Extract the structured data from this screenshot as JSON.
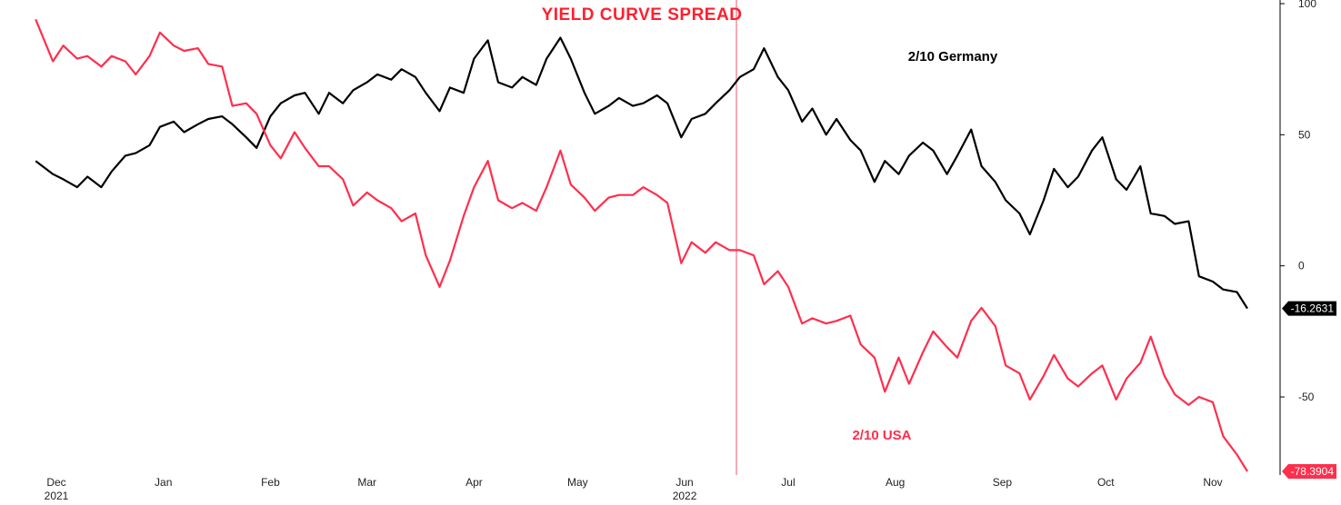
{
  "chart_data": {
    "type": "line",
    "title": "YIELD CURVE SPREAD",
    "xlabel": "",
    "ylabel": "",
    "ylim": [
      -78.3904,
      100
    ],
    "y_ticks": [
      "100",
      "50",
      "0",
      "-50"
    ],
    "x_ticks": [
      {
        "label": "Dec",
        "year": "2021",
        "date": "2021-12-01"
      },
      {
        "label": "Jan",
        "year": "",
        "date": "2022-01-01"
      },
      {
        "label": "Feb",
        "year": "",
        "date": "2022-02-01"
      },
      {
        "label": "Mar",
        "year": "",
        "date": "2022-03-01"
      },
      {
        "label": "Apr",
        "year": "",
        "date": "2022-04-01"
      },
      {
        "label": "May",
        "year": "",
        "date": "2022-05-01"
      },
      {
        "label": "Jun",
        "year": "2022",
        "date": "2022-06-01"
      },
      {
        "label": "Jul",
        "year": "",
        "date": "2022-07-01"
      },
      {
        "label": "Aug",
        "year": "",
        "date": "2022-08-01"
      },
      {
        "label": "Sep",
        "year": "",
        "date": "2022-09-01"
      },
      {
        "label": "Oct",
        "year": "",
        "date": "2022-10-01"
      },
      {
        "label": "Nov",
        "year": "",
        "date": "2022-11-01"
      }
    ],
    "vertical_marker_date": "2022-06-16",
    "grid": false,
    "legend": "none",
    "series": [
      {
        "name": "2/10 Germany",
        "color": "#000000",
        "last_value": "-16.2631",
        "points": [
          [
            "2021-11-25",
            40
          ],
          [
            "2021-11-30",
            35
          ],
          [
            "2021-12-03",
            33
          ],
          [
            "2021-12-07",
            30
          ],
          [
            "2021-12-10",
            34
          ],
          [
            "2021-12-14",
            30
          ],
          [
            "2021-12-17",
            36
          ],
          [
            "2021-12-21",
            42
          ],
          [
            "2021-12-24",
            43
          ],
          [
            "2021-12-28",
            46
          ],
          [
            "2021-12-31",
            53
          ],
          [
            "2022-01-04",
            55
          ],
          [
            "2022-01-07",
            51
          ],
          [
            "2022-01-11",
            54
          ],
          [
            "2022-01-14",
            56
          ],
          [
            "2022-01-18",
            57
          ],
          [
            "2022-01-21",
            54
          ],
          [
            "2022-01-25",
            49
          ],
          [
            "2022-01-28",
            45
          ],
          [
            "2022-02-01",
            57
          ],
          [
            "2022-02-04",
            62
          ],
          [
            "2022-02-08",
            65
          ],
          [
            "2022-02-11",
            66
          ],
          [
            "2022-02-15",
            58
          ],
          [
            "2022-02-18",
            66
          ],
          [
            "2022-02-22",
            62
          ],
          [
            "2022-02-25",
            67
          ],
          [
            "2022-03-01",
            70
          ],
          [
            "2022-03-04",
            73
          ],
          [
            "2022-03-08",
            71
          ],
          [
            "2022-03-11",
            75
          ],
          [
            "2022-03-15",
            72
          ],
          [
            "2022-03-18",
            66
          ],
          [
            "2022-03-22",
            59
          ],
          [
            "2022-03-25",
            68
          ],
          [
            "2022-03-29",
            66
          ],
          [
            "2022-04-01",
            79
          ],
          [
            "2022-04-05",
            86
          ],
          [
            "2022-04-08",
            70
          ],
          [
            "2022-04-12",
            68
          ],
          [
            "2022-04-15",
            72
          ],
          [
            "2022-04-19",
            69
          ],
          [
            "2022-04-22",
            79
          ],
          [
            "2022-04-26",
            87
          ],
          [
            "2022-04-29",
            79
          ],
          [
            "2022-05-03",
            66
          ],
          [
            "2022-05-06",
            58
          ],
          [
            "2022-05-10",
            61
          ],
          [
            "2022-05-13",
            64
          ],
          [
            "2022-05-17",
            61
          ],
          [
            "2022-05-20",
            62
          ],
          [
            "2022-05-24",
            65
          ],
          [
            "2022-05-27",
            62
          ],
          [
            "2022-05-31",
            49
          ],
          [
            "2022-06-03",
            56
          ],
          [
            "2022-06-07",
            58
          ],
          [
            "2022-06-10",
            62
          ],
          [
            "2022-06-14",
            67
          ],
          [
            "2022-06-17",
            72
          ],
          [
            "2022-06-21",
            75
          ],
          [
            "2022-06-24",
            83
          ],
          [
            "2022-06-28",
            72
          ],
          [
            "2022-07-01",
            67
          ],
          [
            "2022-07-05",
            55
          ],
          [
            "2022-07-08",
            60
          ],
          [
            "2022-07-12",
            50
          ],
          [
            "2022-07-15",
            56
          ],
          [
            "2022-07-19",
            48
          ],
          [
            "2022-07-22",
            44
          ],
          [
            "2022-07-26",
            32
          ],
          [
            "2022-07-29",
            40
          ],
          [
            "2022-08-02",
            35
          ],
          [
            "2022-08-05",
            42
          ],
          [
            "2022-08-09",
            47
          ],
          [
            "2022-08-12",
            44
          ],
          [
            "2022-08-16",
            35
          ],
          [
            "2022-08-19",
            42
          ],
          [
            "2022-08-23",
            52
          ],
          [
            "2022-08-26",
            38
          ],
          [
            "2022-08-30",
            32
          ],
          [
            "2022-09-02",
            25
          ],
          [
            "2022-09-06",
            20
          ],
          [
            "2022-09-09",
            12
          ],
          [
            "2022-09-13",
            25
          ],
          [
            "2022-09-16",
            37
          ],
          [
            "2022-09-20",
            30
          ],
          [
            "2022-09-23",
            34
          ],
          [
            "2022-09-27",
            44
          ],
          [
            "2022-09-30",
            49
          ],
          [
            "2022-10-04",
            33
          ],
          [
            "2022-10-07",
            29
          ],
          [
            "2022-10-11",
            38
          ],
          [
            "2022-10-14",
            20
          ],
          [
            "2022-10-18",
            19
          ],
          [
            "2022-10-21",
            16
          ],
          [
            "2022-10-25",
            17
          ],
          [
            "2022-10-28",
            -4
          ],
          [
            "2022-11-01",
            -6
          ],
          [
            "2022-11-04",
            -9
          ],
          [
            "2022-11-08",
            -10
          ],
          [
            "2022-11-11",
            -16.2631
          ]
        ]
      },
      {
        "name": "2/10 USA",
        "color": "#ff2e4c",
        "last_value": "-78.3904",
        "points": [
          [
            "2021-11-25",
            94
          ],
          [
            "2021-11-30",
            78
          ],
          [
            "2021-12-03",
            84
          ],
          [
            "2021-12-07",
            79
          ],
          [
            "2021-12-10",
            80
          ],
          [
            "2021-12-14",
            76
          ],
          [
            "2021-12-17",
            80
          ],
          [
            "2021-12-21",
            78
          ],
          [
            "2021-12-24",
            73
          ],
          [
            "2021-12-28",
            80
          ],
          [
            "2021-12-31",
            89
          ],
          [
            "2022-01-04",
            84
          ],
          [
            "2022-01-07",
            82
          ],
          [
            "2022-01-11",
            83
          ],
          [
            "2022-01-14",
            77
          ],
          [
            "2022-01-18",
            76
          ],
          [
            "2022-01-21",
            61
          ],
          [
            "2022-01-25",
            62
          ],
          [
            "2022-01-28",
            58
          ],
          [
            "2022-02-01",
            46
          ],
          [
            "2022-02-04",
            41
          ],
          [
            "2022-02-08",
            51
          ],
          [
            "2022-02-11",
            45
          ],
          [
            "2022-02-15",
            38
          ],
          [
            "2022-02-18",
            38
          ],
          [
            "2022-02-22",
            33
          ],
          [
            "2022-02-25",
            23
          ],
          [
            "2022-03-01",
            28
          ],
          [
            "2022-03-04",
            25
          ],
          [
            "2022-03-08",
            22
          ],
          [
            "2022-03-11",
            17
          ],
          [
            "2022-03-15",
            20
          ],
          [
            "2022-03-18",
            4
          ],
          [
            "2022-03-22",
            -8
          ],
          [
            "2022-03-25",
            2
          ],
          [
            "2022-03-29",
            19
          ],
          [
            "2022-04-01",
            30
          ],
          [
            "2022-04-05",
            40
          ],
          [
            "2022-04-08",
            25
          ],
          [
            "2022-04-12",
            22
          ],
          [
            "2022-04-15",
            24
          ],
          [
            "2022-04-19",
            21
          ],
          [
            "2022-04-22",
            30
          ],
          [
            "2022-04-26",
            44
          ],
          [
            "2022-04-29",
            31
          ],
          [
            "2022-05-03",
            26
          ],
          [
            "2022-05-06",
            21
          ],
          [
            "2022-05-10",
            26
          ],
          [
            "2022-05-13",
            27
          ],
          [
            "2022-05-17",
            27
          ],
          [
            "2022-05-20",
            30
          ],
          [
            "2022-05-24",
            27
          ],
          [
            "2022-05-27",
            24
          ],
          [
            "2022-05-31",
            1
          ],
          [
            "2022-06-03",
            9
          ],
          [
            "2022-06-07",
            5
          ],
          [
            "2022-06-10",
            9
          ],
          [
            "2022-06-14",
            6
          ],
          [
            "2022-06-17",
            6
          ],
          [
            "2022-06-21",
            4
          ],
          [
            "2022-06-24",
            -7
          ],
          [
            "2022-06-28",
            -2
          ],
          [
            "2022-07-01",
            -8
          ],
          [
            "2022-07-05",
            -22
          ],
          [
            "2022-07-08",
            -20
          ],
          [
            "2022-07-12",
            -22
          ],
          [
            "2022-07-15",
            -21
          ],
          [
            "2022-07-19",
            -19
          ],
          [
            "2022-07-22",
            -30
          ],
          [
            "2022-07-26",
            -35
          ],
          [
            "2022-07-29",
            -48
          ],
          [
            "2022-08-02",
            -35
          ],
          [
            "2022-08-05",
            -45
          ],
          [
            "2022-08-09",
            -33
          ],
          [
            "2022-08-12",
            -25
          ],
          [
            "2022-08-16",
            -31
          ],
          [
            "2022-08-19",
            -35
          ],
          [
            "2022-08-23",
            -21
          ],
          [
            "2022-08-26",
            -16
          ],
          [
            "2022-08-30",
            -23
          ],
          [
            "2022-09-02",
            -38
          ],
          [
            "2022-09-06",
            -41
          ],
          [
            "2022-09-09",
            -51
          ],
          [
            "2022-09-13",
            -42
          ],
          [
            "2022-09-16",
            -34
          ],
          [
            "2022-09-20",
            -43
          ],
          [
            "2022-09-23",
            -46
          ],
          [
            "2022-09-27",
            -41
          ],
          [
            "2022-09-30",
            -38
          ],
          [
            "2022-10-04",
            -51
          ],
          [
            "2022-10-07",
            -43
          ],
          [
            "2022-10-11",
            -37
          ],
          [
            "2022-10-14",
            -27
          ],
          [
            "2022-10-18",
            -42
          ],
          [
            "2022-10-21",
            -49
          ],
          [
            "2022-10-25",
            -53
          ],
          [
            "2022-10-28",
            -50
          ],
          [
            "2022-11-01",
            -52
          ],
          [
            "2022-11-04",
            -65
          ],
          [
            "2022-11-08",
            -72
          ],
          [
            "2022-11-11",
            -78.3904
          ]
        ]
      }
    ]
  }
}
